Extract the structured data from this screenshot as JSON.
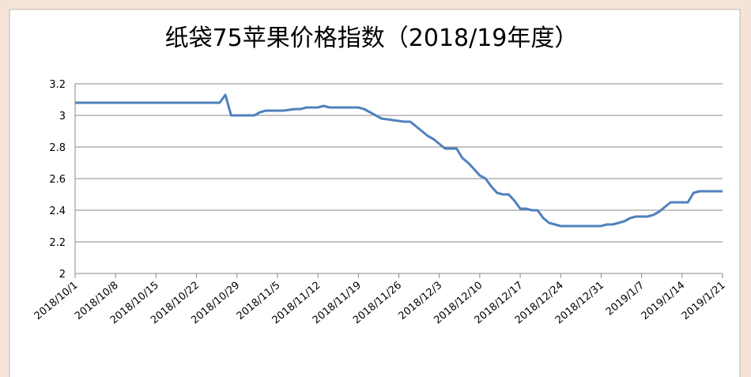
{
  "chart_data": {
    "type": "line",
    "title": "纸袋75苹果价格指数（2018/19年度）",
    "x": [
      "2018/10/1",
      "2018/10/26",
      "2018/10/27",
      "2018/10/28",
      "2018/11/1",
      "2018/11/2",
      "2018/11/3",
      "2018/11/6",
      "2018/11/8",
      "2018/11/9",
      "2018/11/10",
      "2018/11/12",
      "2018/11/13",
      "2018/11/14",
      "2018/11/15",
      "2018/11/19",
      "2018/11/20",
      "2018/11/22",
      "2018/11/23",
      "2018/11/25",
      "2018/11/27",
      "2018/11/28",
      "2018/11/30",
      "2018/12/1",
      "2018/12/2",
      "2018/12/3",
      "2018/12/4",
      "2018/12/6",
      "2018/12/7",
      "2018/12/8",
      "2018/12/9",
      "2018/12/10",
      "2018/12/11",
      "2018/12/12",
      "2018/12/13",
      "2018/12/14",
      "2018/12/15",
      "2018/12/16",
      "2018/12/17",
      "2018/12/18",
      "2018/12/19",
      "2018/12/20",
      "2018/12/21",
      "2018/12/22",
      "2018/12/24",
      "2018/12/31",
      "2019/1/1",
      "2019/1/2",
      "2019/1/3",
      "2019/1/4",
      "2019/1/5",
      "2019/1/6",
      "2019/1/8",
      "2019/1/9",
      "2019/1/10",
      "2019/1/11",
      "2019/1/12",
      "2019/1/15",
      "2019/1/16",
      "2019/1/17",
      "2019/1/21"
    ],
    "series": [
      {
        "name": "纸袋75苹果价格指数",
        "color": "#4f81bd",
        "values": [
          3.08,
          3.08,
          3.13,
          3.0,
          3.0,
          3.02,
          3.03,
          3.03,
          3.04,
          3.04,
          3.05,
          3.05,
          3.06,
          3.05,
          3.05,
          3.05,
          3.04,
          3.0,
          2.98,
          2.97,
          2.96,
          2.96,
          2.9,
          2.87,
          2.85,
          2.82,
          2.79,
          2.79,
          2.73,
          2.7,
          2.66,
          2.62,
          2.6,
          2.55,
          2.51,
          2.5,
          2.5,
          2.46,
          2.41,
          2.41,
          2.4,
          2.4,
          2.35,
          2.32,
          2.3,
          2.3,
          2.31,
          2.31,
          2.32,
          2.33,
          2.35,
          2.36,
          2.36,
          2.37,
          2.39,
          2.42,
          2.45,
          2.45,
          2.51,
          2.52,
          2.52
        ]
      }
    ],
    "xlim": [
      "2018/10/1",
      "2019/1/21"
    ],
    "xticks": [
      "2018/10/1",
      "2018/10/8",
      "2018/10/15",
      "2018/10/22",
      "2018/10/29",
      "2018/11/5",
      "2018/11/12",
      "2018/11/19",
      "2018/11/26",
      "2018/12/3",
      "2018/12/10",
      "2018/12/17",
      "2018/12/24",
      "2018/12/31",
      "2019/1/7",
      "2019/1/14",
      "2019/1/21"
    ],
    "ylim": [
      2,
      3.2
    ],
    "yticks": [
      2,
      2.2,
      2.4,
      2.6,
      2.8,
      3,
      3.2
    ],
    "grid": true
  }
}
